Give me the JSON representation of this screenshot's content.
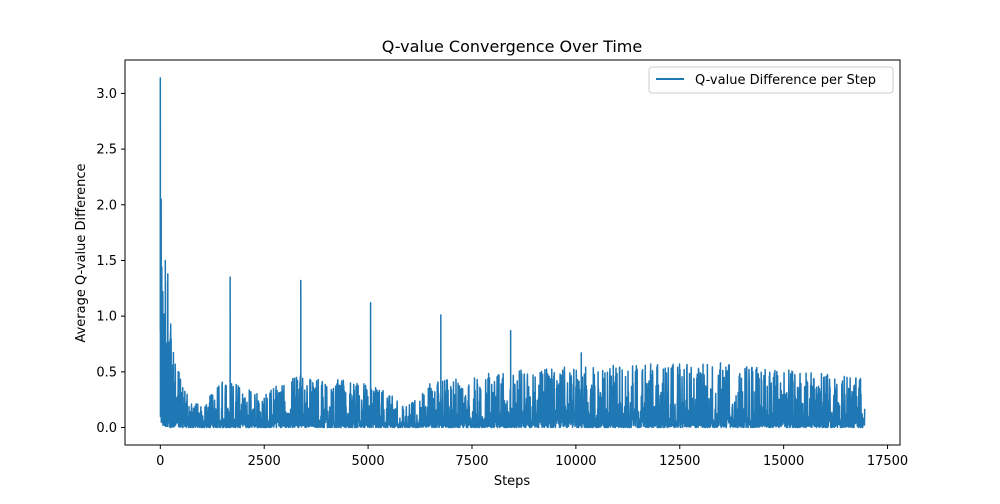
{
  "chart_data": {
    "type": "line",
    "title": "Q-value Convergence Over Time",
    "xlabel": "Steps",
    "ylabel": "Average Q-value Difference",
    "xlim": [
      -850,
      17800
    ],
    "ylim": [
      -0.157,
      3.3
    ],
    "x_ticks": [
      0,
      2500,
      5000,
      7500,
      10000,
      12500,
      15000,
      17500
    ],
    "x_tick_labels": [
      "0",
      "2500",
      "5000",
      "7500",
      "10000",
      "12500",
      "15000",
      "17500"
    ],
    "y_ticks": [
      0.0,
      0.5,
      1.0,
      1.5,
      2.0,
      2.5,
      3.0
    ],
    "y_tick_labels": [
      "0.0",
      "0.5",
      "1.0",
      "1.5",
      "2.0",
      "2.5",
      "3.0"
    ],
    "grid": false,
    "legend_position": "upper right",
    "series": [
      {
        "name": "Q-value Difference per Step",
        "color": "#1f77b4",
        "x_range": [
          0,
          16950
        ],
        "envelope": [
          {
            "x": 0,
            "min": 0.1,
            "max": 3.14
          },
          {
            "x": 20,
            "min": 0.05,
            "max": 2.05
          },
          {
            "x": 60,
            "min": 0.02,
            "max": 1.22
          },
          {
            "x": 120,
            "min": 0.01,
            "max": 1.5
          },
          {
            "x": 180,
            "min": 0.01,
            "max": 1.38
          },
          {
            "x": 250,
            "min": 0.0,
            "max": 0.93
          },
          {
            "x": 350,
            "min": 0.0,
            "max": 0.6
          },
          {
            "x": 500,
            "min": 0.0,
            "max": 0.45
          },
          {
            "x": 700,
            "min": 0.0,
            "max": 0.25
          },
          {
            "x": 1000,
            "min": 0.0,
            "max": 0.2
          },
          {
            "x": 1500,
            "min": 0.0,
            "max": 0.45
          },
          {
            "x": 2500,
            "min": 0.0,
            "max": 0.3
          },
          {
            "x": 3100,
            "min": 0.0,
            "max": 0.48
          },
          {
            "x": 5000,
            "min": 0.0,
            "max": 0.4
          },
          {
            "x": 6000,
            "min": 0.0,
            "max": 0.22
          },
          {
            "x": 6500,
            "min": 0.0,
            "max": 0.42
          },
          {
            "x": 8000,
            "min": 0.0,
            "max": 0.5
          },
          {
            "x": 10000,
            "min": 0.0,
            "max": 0.55
          },
          {
            "x": 11800,
            "min": 0.0,
            "max": 0.57
          },
          {
            "x": 13500,
            "min": 0.0,
            "max": 0.58
          },
          {
            "x": 15000,
            "min": 0.0,
            "max": 0.52
          },
          {
            "x": 16000,
            "min": 0.0,
            "max": 0.48
          },
          {
            "x": 16950,
            "min": 0.0,
            "max": 0.45
          }
        ],
        "spikes": [
          {
            "x": 1680,
            "y": 1.35
          },
          {
            "x": 3380,
            "y": 1.32
          },
          {
            "x": 5060,
            "y": 1.12
          },
          {
            "x": 6750,
            "y": 1.01
          },
          {
            "x": 8430,
            "y": 0.87
          },
          {
            "x": 10130,
            "y": 0.67
          },
          {
            "x": 11800,
            "y": 0.57
          },
          {
            "x": 13480,
            "y": 0.58
          }
        ]
      }
    ]
  }
}
